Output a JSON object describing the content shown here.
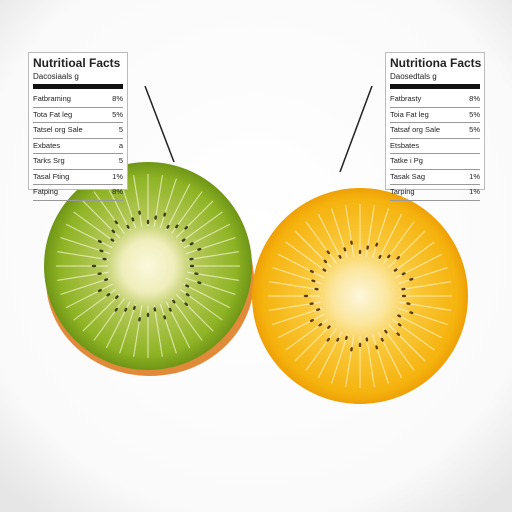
{
  "labels": [
    {
      "title": "Nutritioal Facts",
      "subtitle": "Dacosiaals g",
      "rows": [
        [
          "Fatbraming",
          "8%"
        ],
        [
          "Tota Fat leg",
          "5%"
        ],
        [
          "Tatsel org Sale",
          "5"
        ],
        [
          "Exbates",
          "a"
        ],
        [
          "Tarks Srg",
          "5"
        ],
        [
          "Tasal Fting",
          "1%"
        ],
        [
          "Fatping",
          "8%"
        ]
      ]
    },
    {
      "title": "Nutritiona Facts",
      "subtitle": "Daosedtals g",
      "rows": [
        [
          "Fatbrasty",
          "8%"
        ],
        [
          "Toia Fat leg",
          "5%"
        ],
        [
          "Tatsaf org Sale",
          "5%"
        ],
        [
          "Etsbates"
        ],
        [
          "Tatke i Pg"
        ],
        [
          "Tasak Sag",
          "1%"
        ],
        [
          "Tarping",
          "1%"
        ]
      ]
    }
  ]
}
